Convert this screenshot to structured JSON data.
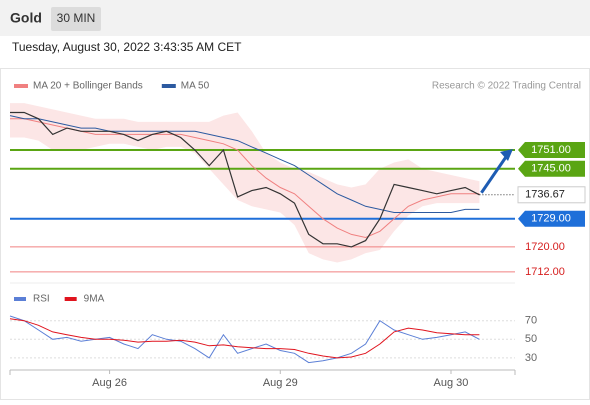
{
  "header": {
    "title": "Gold",
    "interval": "30 MIN",
    "timestamp": "Tuesday, August 30, 2022 3:43:35 AM CET"
  },
  "chart_data": [
    {
      "type": "line",
      "note": "Research © 2022 Trading Central",
      "x": [
        0,
        2,
        4,
        6,
        8,
        10,
        12,
        14,
        16,
        18,
        20,
        22,
        24,
        26,
        28,
        30,
        32,
        34,
        36,
        38,
        40,
        42,
        44,
        46,
        48,
        50,
        52,
        54,
        56,
        58,
        60,
        62,
        64,
        66
      ],
      "xlim": [
        0,
        71
      ],
      "xticks": [
        {
          "value": 14,
          "label": "Aug 26"
        },
        {
          "value": 38,
          "label": "Aug 29"
        },
        {
          "value": 62,
          "label": "Aug 30"
        }
      ],
      "ylim": [
        1711,
        1767
      ],
      "close": {
        "color": "#333333",
        "values": [
          1763,
          1763,
          1761,
          1756,
          1758,
          1757,
          1757,
          1757,
          1756,
          1754,
          1756,
          1757,
          1755,
          1751,
          1746,
          1751,
          1736,
          1738,
          1739,
          1737,
          1734,
          1724,
          1721,
          1721,
          1720,
          1722,
          1729,
          1740,
          1739,
          1738,
          1737,
          1738,
          1739,
          1736.67
        ]
      },
      "last_price": 1736.67,
      "series": [
        {
          "name": "MA 20 + Bollinger Bands",
          "color": "#f08080",
          "values": [
            1761,
            1761,
            1760,
            1759,
            1758,
            1757,
            1756,
            1756,
            1756,
            1756,
            1756,
            1756,
            1756,
            1755,
            1754,
            1753,
            1751,
            1746,
            1742,
            1739,
            1737,
            1733,
            1729,
            1726,
            1724,
            1723,
            1725,
            1729,
            1733,
            1735,
            1736,
            1737,
            1737,
            1737
          ],
          "upper": [
            1766,
            1766,
            1765,
            1764,
            1763,
            1762,
            1761,
            1761,
            1761,
            1760,
            1760,
            1760,
            1760,
            1760,
            1760,
            1762,
            1763,
            1757,
            1750,
            1747,
            1745,
            1744,
            1742,
            1740,
            1739,
            1740,
            1745,
            1747,
            1748,
            1745,
            1744,
            1743,
            1742,
            1741
          ],
          "lower": [
            1755,
            1755,
            1754,
            1751,
            1751,
            1751,
            1752,
            1753,
            1753,
            1752,
            1751,
            1752,
            1752,
            1750,
            1745,
            1740,
            1735,
            1733,
            1732,
            1731,
            1727,
            1718,
            1716,
            1715,
            1716,
            1718,
            1719,
            1725,
            1730,
            1733,
            1734,
            1734,
            1734,
            1734
          ]
        },
        {
          "name": "MA 50",
          "color": "#2c5aa0",
          "values": [
            1762,
            1761,
            1761,
            1760,
            1759,
            1758,
            1758,
            1757,
            1757,
            1757,
            1757,
            1757,
            1757,
            1757,
            1756,
            1755,
            1754,
            1752,
            1750,
            1748,
            1746,
            1743,
            1740,
            1737,
            1735,
            1733,
            1732,
            1731,
            1731,
            1731,
            1731,
            1731,
            1732,
            1732
          ]
        }
      ],
      "levels": [
        {
          "value": 1751,
          "label": "1751.00",
          "color": "#5aa513",
          "boxed": true
        },
        {
          "value": 1745,
          "label": "1745.00",
          "color": "#5aa513",
          "boxed": true
        },
        {
          "value": 1729,
          "label": "1729.00",
          "color": "#1e6fd9",
          "boxed": true
        },
        {
          "value": 1720,
          "label": "1720.00",
          "color": "#f08080",
          "boxed": false
        },
        {
          "value": 1712,
          "label": "1712.00",
          "color": "#f08080",
          "boxed": false
        }
      ]
    },
    {
      "type": "line",
      "xlim": [
        0,
        71
      ],
      "ylim": [
        17,
        103
      ],
      "yticks": [
        30,
        50,
        70
      ],
      "series": [
        {
          "name": "RSI",
          "color": "#5b7fd6",
          "values": [
            75,
            70,
            60,
            50,
            52,
            48,
            50,
            52,
            45,
            40,
            55,
            50,
            48,
            40,
            30,
            55,
            35,
            40,
            45,
            38,
            35,
            25,
            27,
            30,
            35,
            45,
            70,
            60,
            55,
            50,
            52,
            55,
            58,
            50
          ]
        },
        {
          "name": "9MA",
          "color": "#e0141e",
          "values": [
            72,
            70,
            65,
            58,
            55,
            52,
            50,
            50,
            49,
            47,
            48,
            48,
            49,
            47,
            43,
            44,
            42,
            41,
            40,
            40,
            39,
            35,
            32,
            30,
            31,
            35,
            45,
            58,
            62,
            60,
            57,
            56,
            55,
            55
          ]
        }
      ]
    }
  ]
}
